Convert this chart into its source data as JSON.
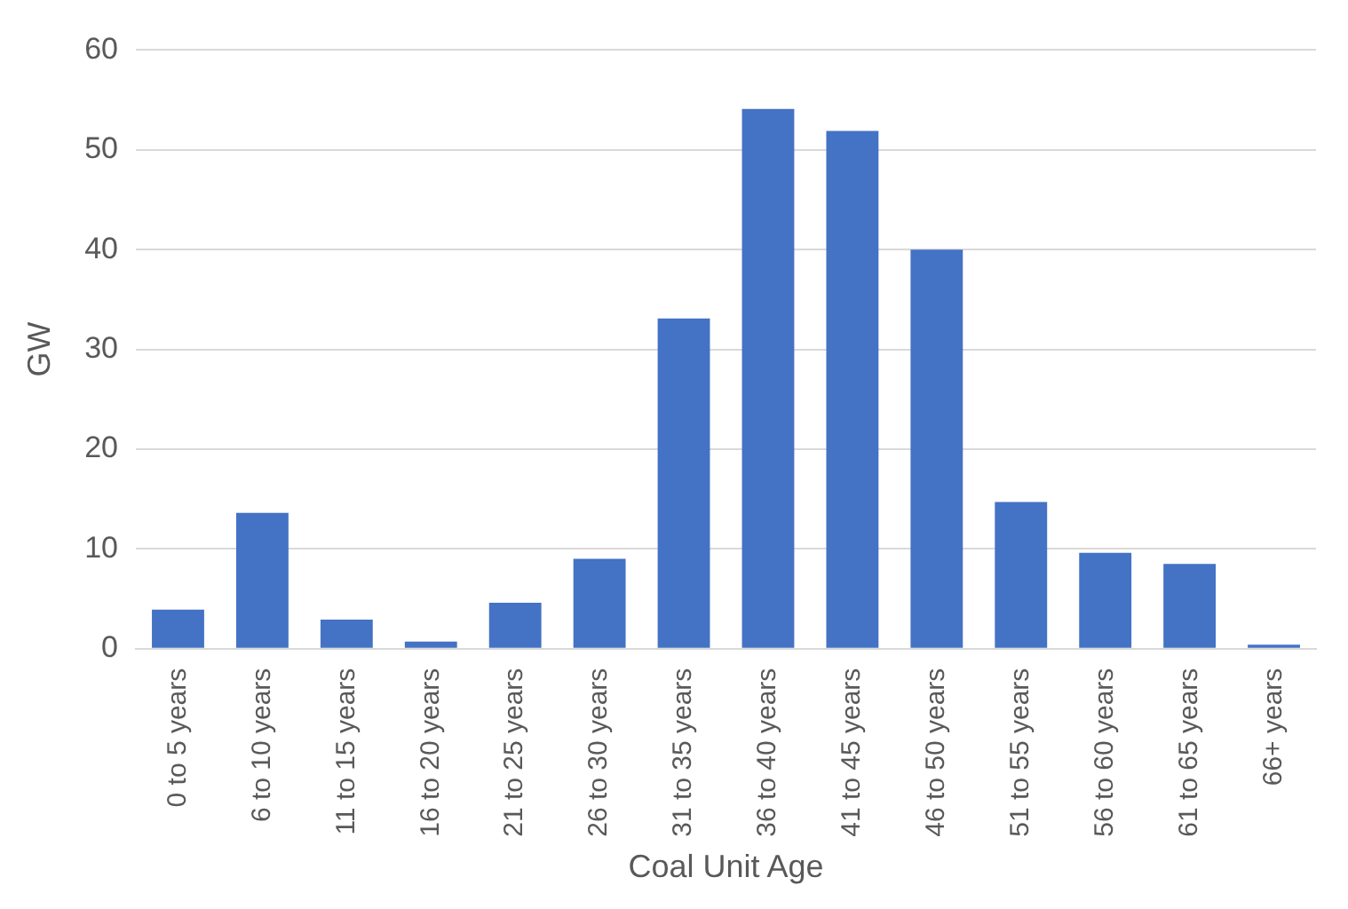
{
  "chart_data": {
    "type": "bar",
    "xlabel": "Coal Unit Age",
    "ylabel": "GW",
    "categories": [
      "0 to 5 years",
      "6 to 10 years",
      "11 to 15 years",
      "16 to 20 years",
      "21 to 25 years",
      "26 to 30 years",
      "31 to 35 years",
      "36 to 40 years",
      "41 to 45 years",
      "46 to 50 years",
      "51 to 55 years",
      "56 to 60 years",
      "61 to 65 years",
      "66+ years"
    ],
    "values": [
      3.9,
      13.6,
      2.9,
      0.7,
      4.6,
      9.0,
      33.1,
      54.1,
      51.9,
      40.0,
      14.7,
      9.6,
      8.5,
      0.4
    ],
    "color": "#4472c4",
    "ylim": [
      0,
      60
    ],
    "yticks": [
      0,
      10,
      20,
      30,
      40,
      50,
      60
    ],
    "grid": "y",
    "legend": false
  }
}
